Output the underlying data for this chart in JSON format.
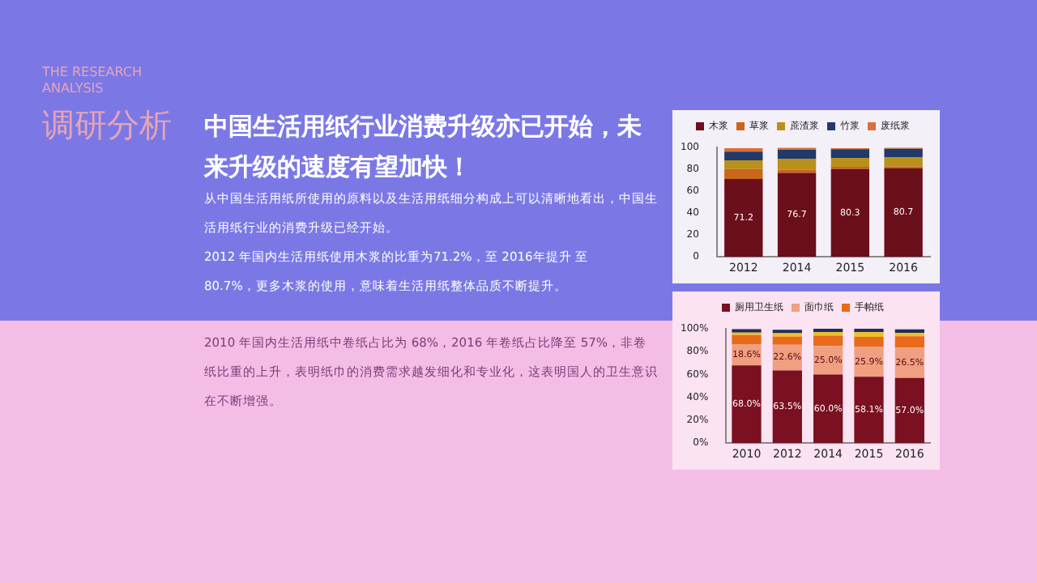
{
  "chart_data": [
    {
      "type": "other",
      "title": "中国生活用纸行业消费升级亦已开始，未来升级的速度有望加快！",
      "annotations": [
        "THE RESEARCH ANALYSIS",
        "调研分析",
        "从中国生活用纸所使用的原料以及生活用纸细分构成上可以清晰地看出，中国生活用纸行业的消费升级已经开始。",
        "2012 年国内生活用纸使用木浆的比重为71.2%，至 2016年提升 至 80.7%，更多木浆的使用，意味着生活用纸整体品质不断提升。",
        "2010 年国内生活用纸中卷纸占比为 68%，2016 年卷纸占比降至 57%，非卷纸比重的上升，表明纸巾的消费需求越发细化和专业化，这表明国人的卫生意识在不断增强。"
      ]
    },
    {
      "type": "bar",
      "stacked": true,
      "categories": [
        "2012",
        "2014",
        "2015",
        "2016"
      ],
      "ylim": [
        0,
        100
      ],
      "yticks": [
        0,
        20,
        40,
        60,
        80,
        100
      ],
      "legend": "top",
      "series": [
        {
          "name": "木浆",
          "color": "#6b0f1a",
          "values": [
            71.2,
            76.7,
            80.3,
            80.7
          ],
          "value_labels": [
            "71.2",
            "76.7",
            "80.3",
            "80.7"
          ]
        },
        {
          "name": "草浆",
          "color": "#c8661a",
          "values": [
            9,
            3,
            2,
            2
          ]
        },
        {
          "name": "蔗渣浆",
          "color": "#b8901a",
          "values": [
            8,
            10,
            8,
            8
          ]
        },
        {
          "name": "竹浆",
          "color": "#1f3a6b",
          "values": [
            8,
            8,
            8,
            8
          ]
        },
        {
          "name": "废纸浆",
          "color": "#d9703a",
          "values": [
            3,
            2,
            1,
            1
          ]
        }
      ]
    },
    {
      "type": "bar",
      "stacked": true,
      "categories": [
        "2010",
        "2012",
        "2014",
        "2015",
        "2016"
      ],
      "ylim": [
        0,
        100
      ],
      "yticks": [
        {
          "value": 0,
          "label": "0%"
        },
        {
          "value": 20,
          "label": "20%"
        },
        {
          "value": 40,
          "label": "40%"
        },
        {
          "value": 60,
          "label": "60%"
        },
        {
          "value": 80,
          "label": "80%"
        },
        {
          "value": 100,
          "label": "100%"
        }
      ],
      "legend": "top",
      "series": [
        {
          "name": "厕用卫生纸",
          "color": "#7a1020",
          "values": [
            68,
            63.5,
            60,
            58.1,
            57
          ],
          "value_labels": [
            "68.0%",
            "63.5%",
            "60.0%",
            "58.1%",
            "57.0%"
          ]
        },
        {
          "name": "面巾纸",
          "color": "#f0a080",
          "values": [
            18.6,
            22.6,
            25,
            25.9,
            26.5
          ],
          "value_labels": [
            "18.6%",
            "22.6%",
            "25.0%",
            "25.9%",
            "26.5%"
          ]
        },
        {
          "name": "手帕纸",
          "color": "#e86a1a",
          "values": [
            8,
            7,
            9,
            9,
            10
          ]
        },
        {
          "color": "#f0c020",
          "values": [
            2,
            3,
            3,
            4,
            3
          ]
        },
        {
          "color": "#1f2f5a",
          "values": [
            3,
            3,
            3,
            3,
            3
          ]
        }
      ]
    }
  ]
}
